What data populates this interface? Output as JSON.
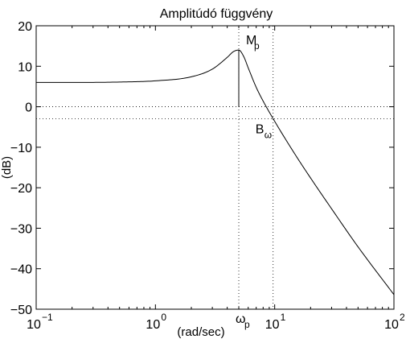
{
  "chart_data": {
    "type": "line",
    "title": "Amplitúdó függvény",
    "xlabel": "(rad/sec)",
    "ylabel": "(dB)",
    "xscale": "log",
    "xlim": [
      0.1,
      100
    ],
    "ylim": [
      -50,
      20
    ],
    "x_ticks": [
      {
        "base": "10",
        "exp": "−1"
      },
      {
        "base": "10",
        "exp": "0"
      },
      {
        "base": "10",
        "exp": "1"
      },
      {
        "base": "10",
        "exp": "2"
      }
    ],
    "y_ticks": [
      "20",
      "10",
      "0",
      "−10",
      "−20",
      "−30",
      "−40",
      "−50"
    ],
    "series": [
      {
        "x": [
          0.1,
          0.2,
          0.5,
          1.0,
          2.0,
          3.0,
          4.0,
          4.5,
          5.0,
          5.5,
          6.0,
          7.0,
          8.0,
          10.0,
          15.0,
          20.0,
          30.0,
          50.0,
          100.0
        ],
        "y": [
          6.0,
          6.0,
          6.1,
          6.4,
          7.4,
          9.3,
          12.2,
          13.6,
          14.0,
          12.4,
          9.6,
          4.8,
          1.4,
          -3.6,
          -12.0,
          -17.6,
          -25.2,
          -34.6,
          -46.4
        ],
        "color": "#000000"
      }
    ],
    "reference_lines": {
      "horizontal": [
        0,
        -3
      ],
      "vertical": [
        5.0,
        9.7
      ],
      "style": "dotted"
    },
    "annotations": [
      {
        "text": "M",
        "sub": "p",
        "x": 5.0,
        "y": 14.0
      },
      {
        "text": "B",
        "sub": "ω",
        "x": 9.7,
        "y": -3
      },
      {
        "text": "ω",
        "sub": "p",
        "x": 5.0,
        "y": -50
      }
    ],
    "grid": false,
    "legend": "none"
  }
}
